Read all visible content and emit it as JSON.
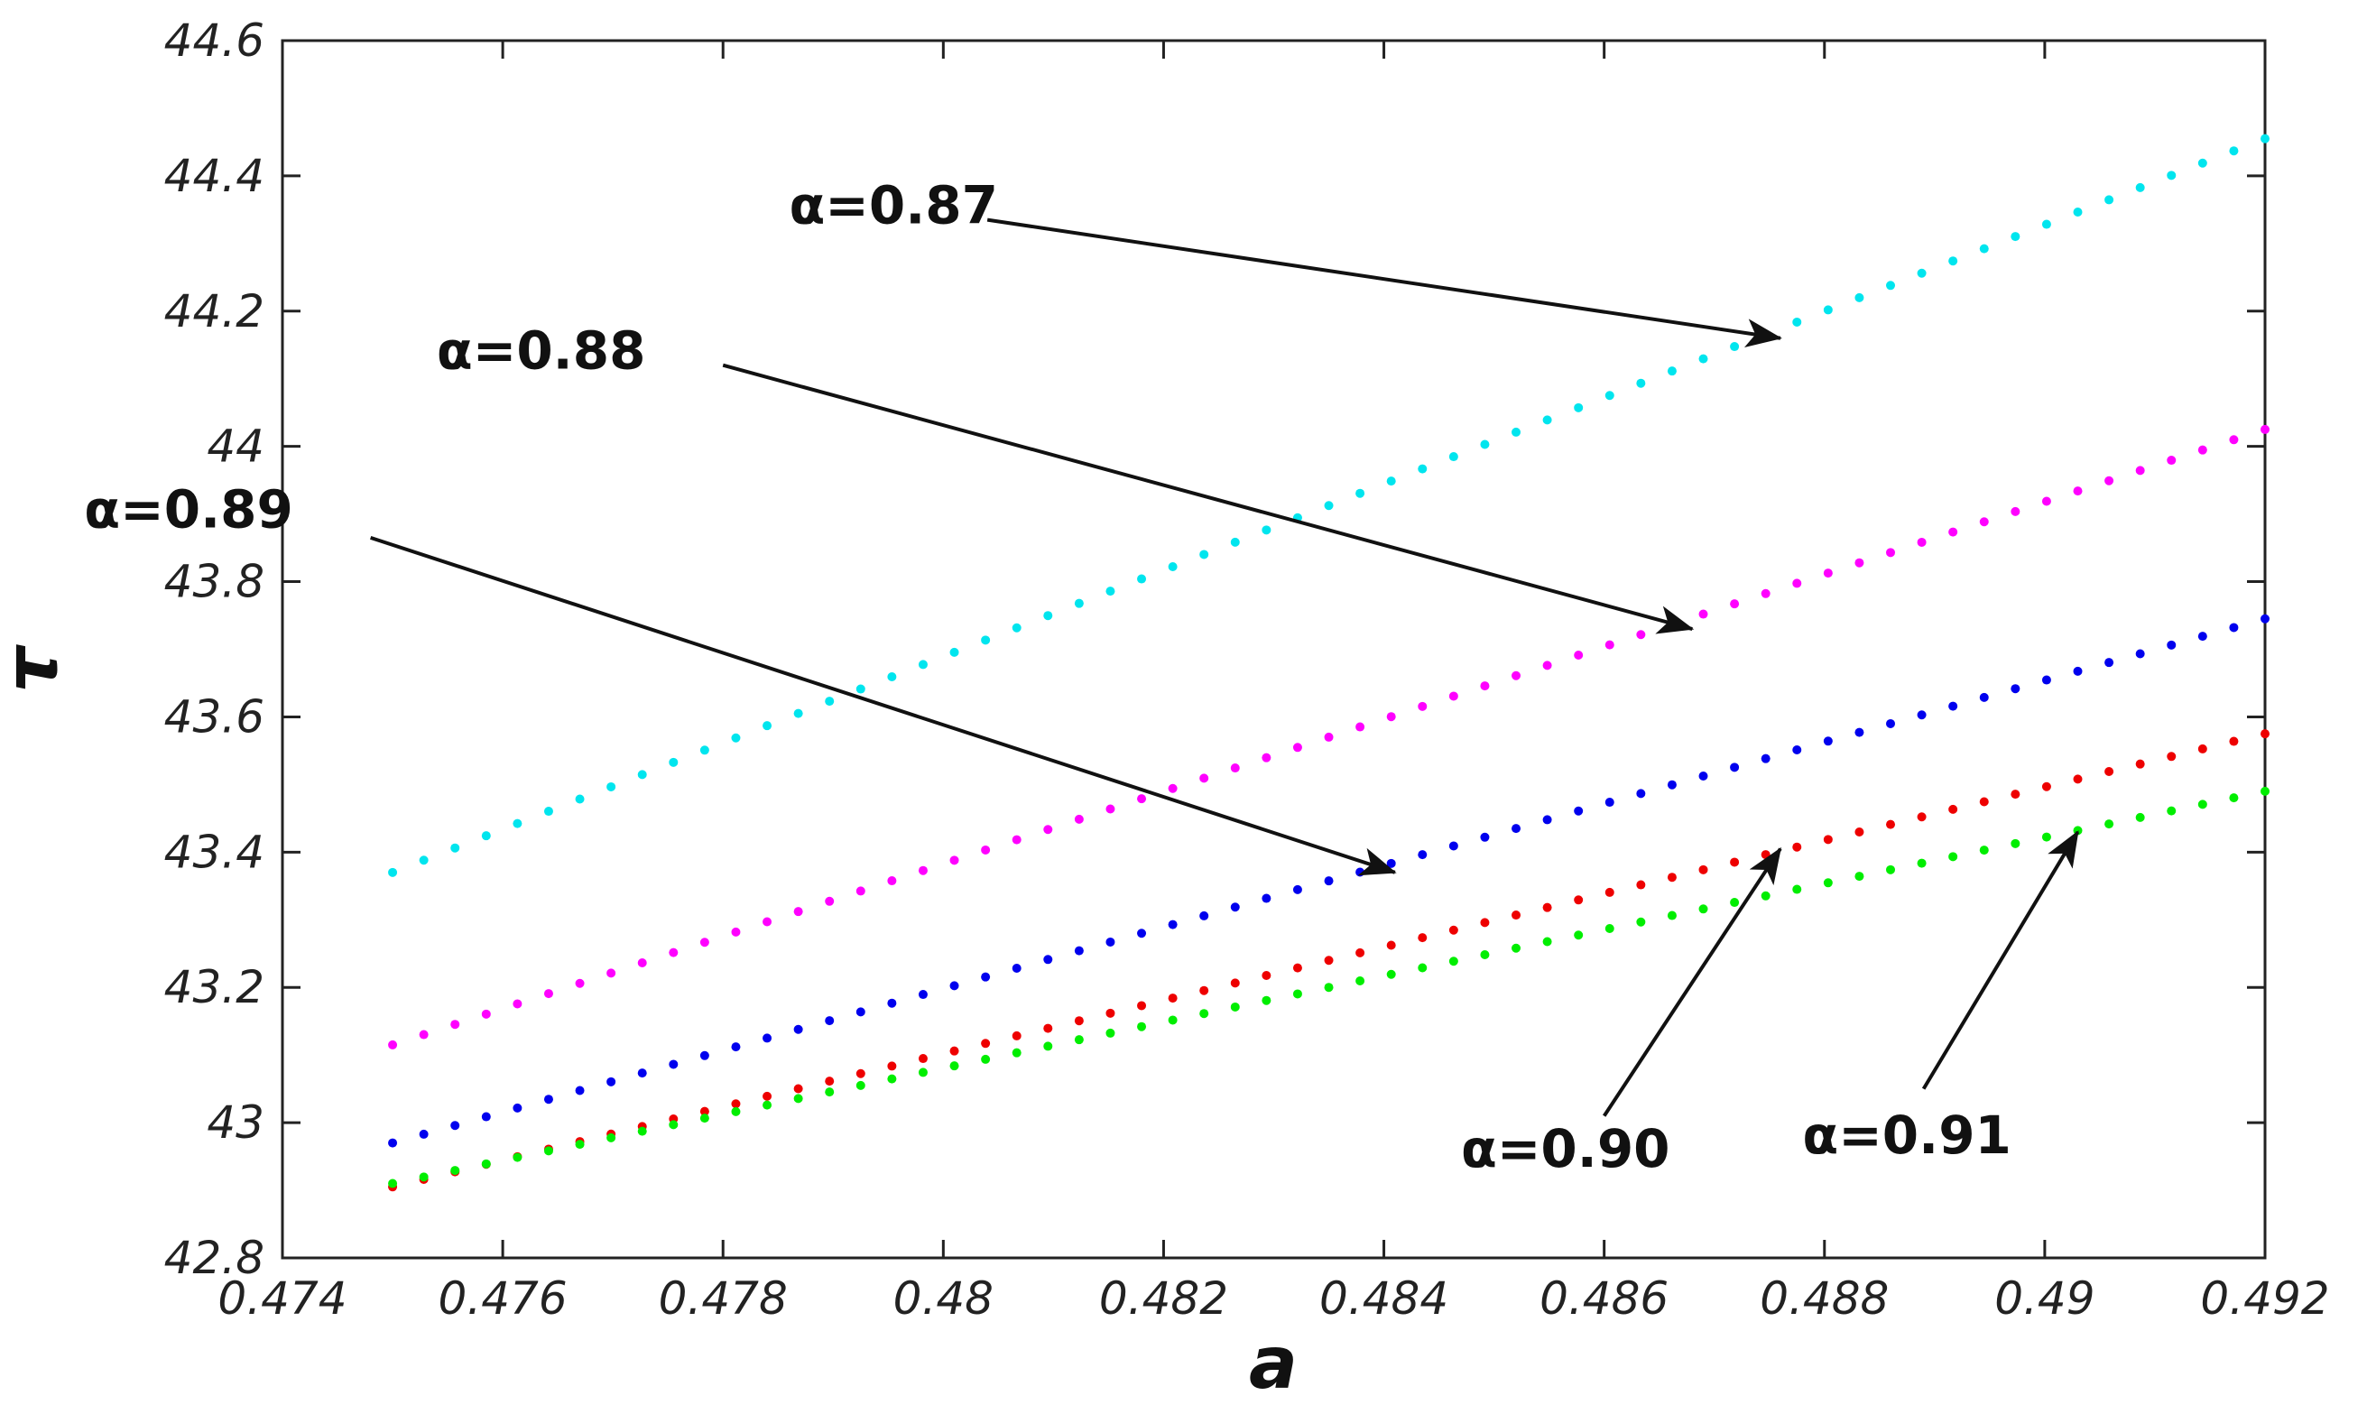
{
  "chart_data": {
    "type": "scatter",
    "xlabel": "a",
    "ylabel": "τ",
    "xlim": [
      0.474,
      0.492
    ],
    "ylim": [
      42.8,
      44.6
    ],
    "x_ticks": [
      "0.474",
      "0.476",
      "0.478",
      "0.48",
      "0.482",
      "0.484",
      "0.486",
      "0.488",
      "0.49",
      "0.492"
    ],
    "y_ticks": [
      "42.8",
      "43",
      "43.2",
      "43.4",
      "43.6",
      "43.8",
      "44",
      "44.2",
      "44.4",
      "44.6"
    ],
    "grid": false,
    "marker": "dotted",
    "series": [
      {
        "name": "α=0.87",
        "color": "#00e5ee",
        "x_start": 0.475,
        "y_start": 43.37,
        "x_end": 0.492,
        "y_end": 44.455,
        "points": 61
      },
      {
        "name": "α=0.88",
        "color": "#ff00ff",
        "x_start": 0.475,
        "y_start": 43.115,
        "x_end": 0.492,
        "y_end": 44.025,
        "points": 61
      },
      {
        "name": "α=0.89",
        "color": "#0000ee",
        "x_start": 0.475,
        "y_start": 42.97,
        "x_end": 0.492,
        "y_end": 43.745,
        "points": 61
      },
      {
        "name": "α=0.90",
        "color": "#ee0000",
        "x_start": 0.475,
        "y_start": 42.905,
        "x_end": 0.492,
        "y_end": 43.575,
        "points": 61
      },
      {
        "name": "α=0.91",
        "color": "#00ee00",
        "x_start": 0.475,
        "y_start": 42.91,
        "x_end": 0.492,
        "y_end": 43.49,
        "points": 61
      }
    ],
    "annotations": [
      {
        "text": "α=0.87",
        "text_x": 0.4786,
        "text_y": 44.33,
        "arrow_from": [
          0.4804,
          44.335
        ],
        "arrow_to": [
          0.4876,
          44.16
        ]
      },
      {
        "text": "α=0.88",
        "text_x": 0.4754,
        "text_y": 44.115,
        "arrow_from": [
          0.478,
          44.12
        ],
        "arrow_to": [
          0.4868,
          43.73
        ]
      },
      {
        "text": "α=0.89",
        "text_x": 0.4722,
        "text_y": 43.88,
        "arrow_from": [
          0.4748,
          43.865
        ],
        "arrow_to": [
          0.4841,
          43.37
        ]
      },
      {
        "text": "α=0.90",
        "text_x": 0.4847,
        "text_y": 42.935,
        "arrow_from": [
          0.486,
          43.01
        ],
        "arrow_to": [
          0.4876,
          43.405
        ]
      },
      {
        "text": "α=0.91",
        "text_x": 0.4878,
        "text_y": 42.955,
        "arrow_from": [
          0.4889,
          43.05
        ],
        "arrow_to": [
          0.4903,
          43.43
        ]
      }
    ]
  }
}
